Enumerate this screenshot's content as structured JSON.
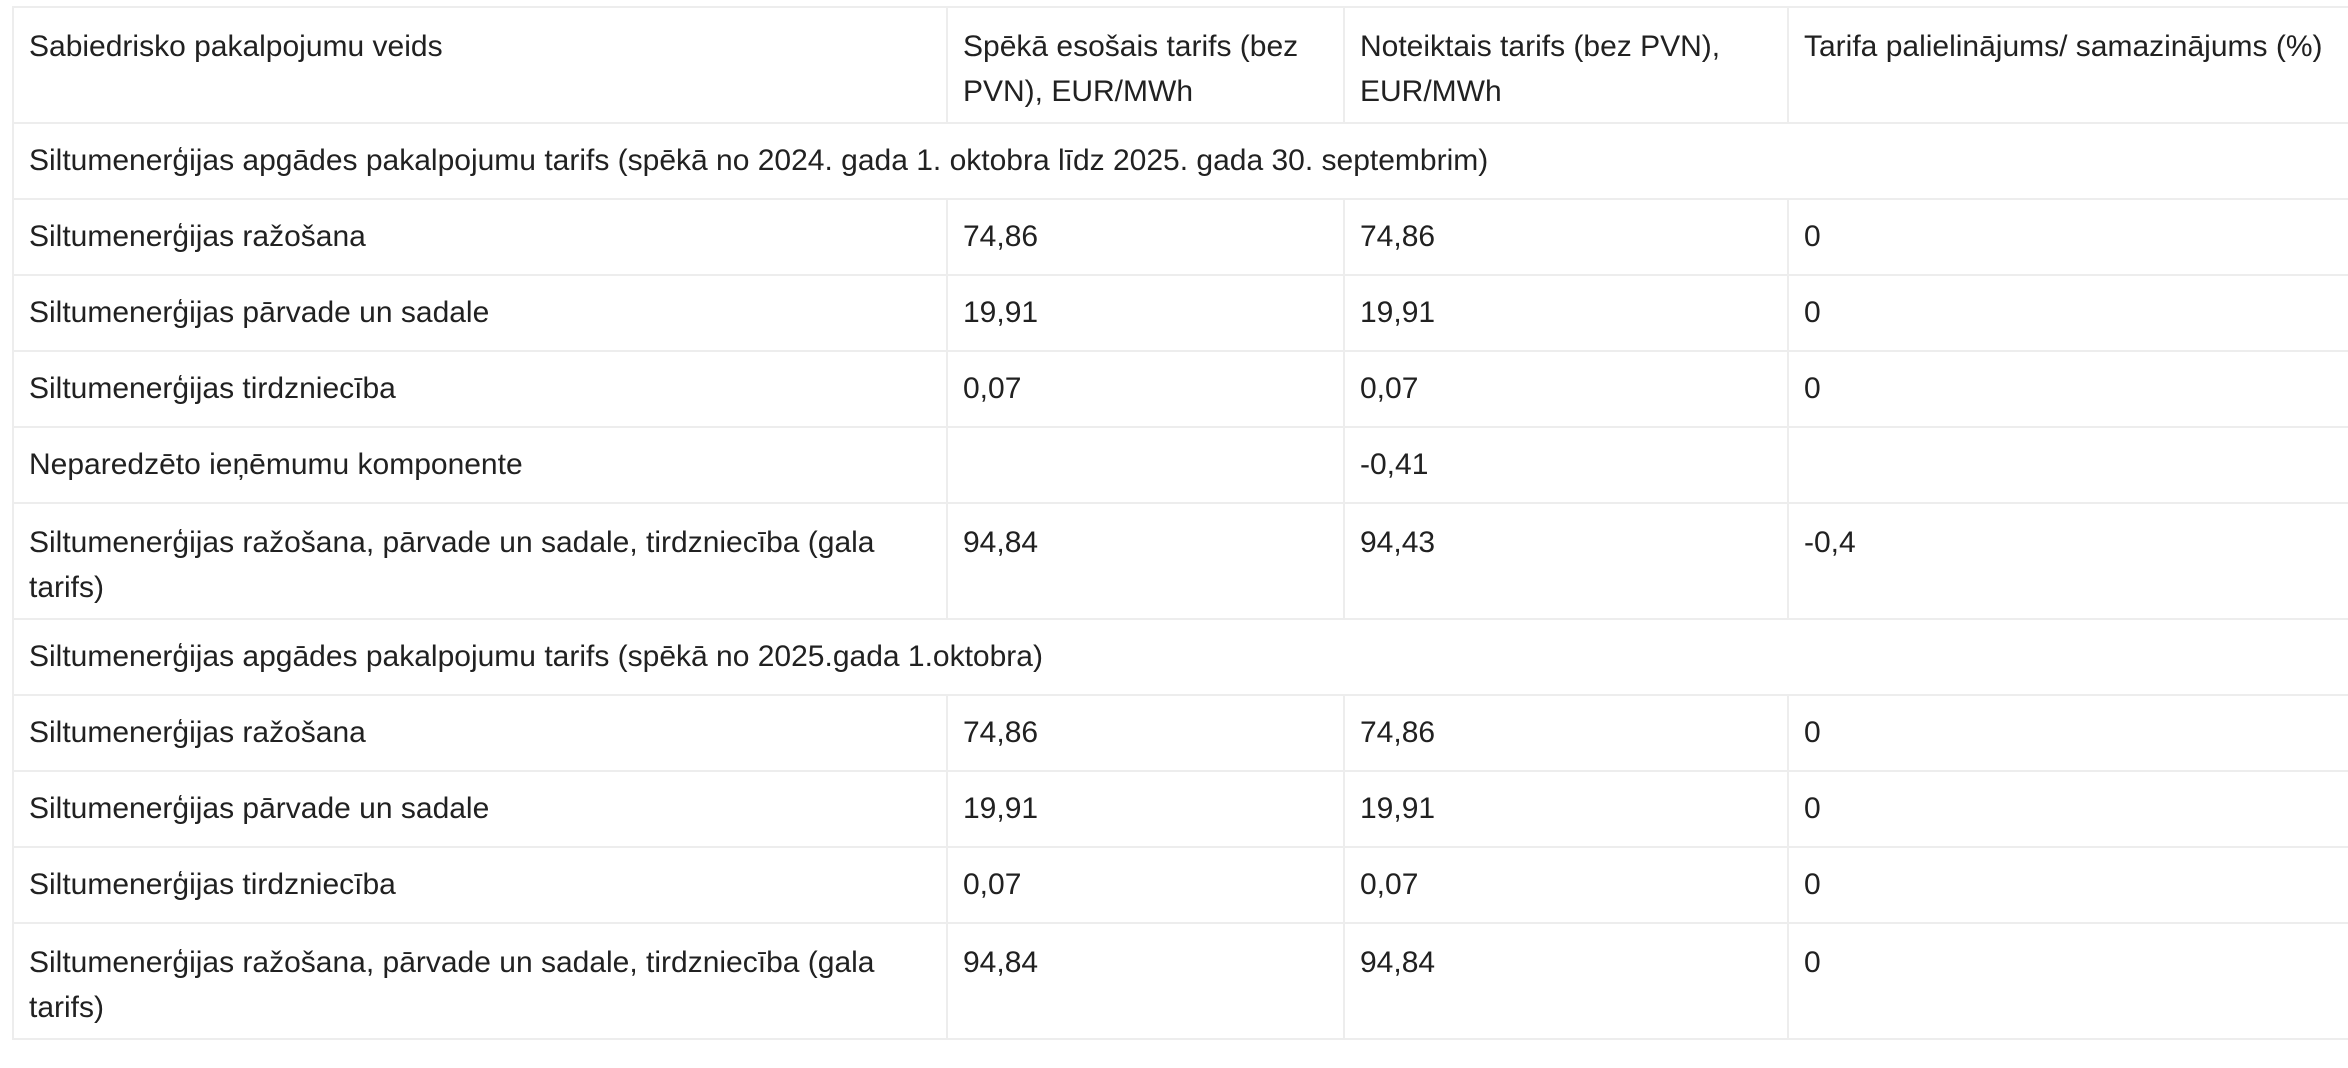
{
  "table": {
    "header": [
      "Sabiedrisko pakalpojumu veids",
      "Spēkā esošais tarifs (bez PVN), EUR/MWh",
      "Noteiktais tarifs (bez PVN), EUR/MWh",
      "Tarifa palielinājums/ samazinājums (%)"
    ],
    "section1": {
      "title": "Siltumenerģijas apgādes pakalpojumu tarifs (spēkā no 2024. gada 1. oktobra līdz 2025. gada 30. septembrim)",
      "rows": [
        [
          "Siltumenerģijas ražošana",
          "74,86",
          "74,86",
          "0"
        ],
        [
          "Siltumenerģijas pārvade un sadale",
          "19,91",
          "19,91",
          "0"
        ],
        [
          "Siltumenerģijas tirdzniecība",
          "0,07",
          "0,07",
          "0"
        ],
        [
          "Neparedzēto ieņēmumu komponente",
          "",
          "-0,41",
          ""
        ],
        [
          "Siltumenerģijas ražošana, pārvade un sadale, tirdzniecība (gala tarifs)",
          "94,84",
          "94,43",
          "-0,4"
        ]
      ]
    },
    "section2": {
      "title": "Siltumenerģijas apgādes pakalpojumu tarifs (spēkā no 2025.gada 1.oktobra)",
      "rows": [
        [
          "Siltumenerģijas ražošana",
          "74,86",
          "74,86",
          "0"
        ],
        [
          "Siltumenerģijas pārvade un sadale",
          "19,91",
          "19,91",
          "0"
        ],
        [
          "Siltumenerģijas tirdzniecība",
          "0,07",
          "0,07",
          "0"
        ],
        [
          "Siltumenerģijas ražošana, pārvade un sadale, tirdzniecība (gala tarifs)",
          "94,84",
          "94,84",
          "0"
        ]
      ]
    }
  }
}
